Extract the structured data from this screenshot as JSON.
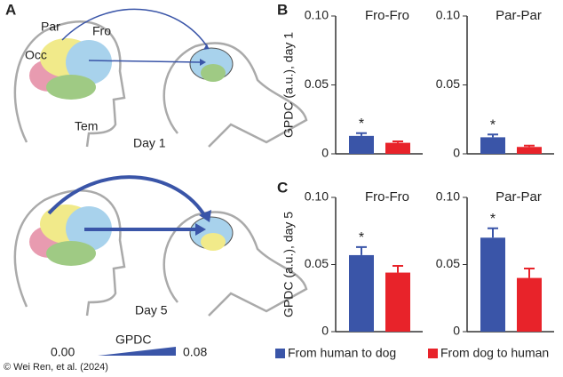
{
  "panels": {
    "a": "A",
    "b": "B",
    "c": "C"
  },
  "diagram": {
    "regions": {
      "occ": "Occ",
      "par": "Par",
      "fro": "Fro",
      "tem": "Tem"
    },
    "day1": "Day 1",
    "day5": "Day 5",
    "scale_label": "GPDC",
    "scale_min": "0.00",
    "scale_max": "0.08"
  },
  "legend": [
    {
      "name": "From human to dog",
      "color": "#3a55a8"
    },
    {
      "name": "From dog to human",
      "color": "#e8232a"
    }
  ],
  "credit": "© Wei Ren, et al. (2024)",
  "chart_data": [
    {
      "type": "bar",
      "title": "Fro-Fro",
      "y_label": "GPDC (a.u.), day 1",
      "categories": [
        null
      ],
      "annotation": "*",
      "ylim": [
        0,
        0.1
      ],
      "yticks": [
        0,
        0.05,
        {
          "value": 0.1,
          "label": "0.10"
        }
      ],
      "series": [
        {
          "color": "#3a55a8",
          "values": [
            0.013
          ],
          "errors": [
            0.002
          ]
        },
        {
          "color": "#e8232a",
          "values": [
            0.008
          ],
          "errors": [
            0.001
          ]
        }
      ]
    },
    {
      "type": "bar",
      "title": "Par-Par",
      "categories": [
        null
      ],
      "annotation": "*",
      "ylim": [
        0,
        0.1
      ],
      "yticks": [
        0,
        0.05,
        {
          "value": 0.1,
          "label": "0.10"
        }
      ],
      "series": [
        {
          "color": "#3a55a8",
          "values": [
            0.012
          ],
          "errors": [
            0.002
          ]
        },
        {
          "color": "#e8232a",
          "values": [
            0.005
          ],
          "errors": [
            0.001
          ]
        }
      ]
    },
    {
      "type": "bar",
      "title": "Fro-Fro",
      "y_label": "GPDC (a.u.), day 5",
      "categories": [
        null
      ],
      "annotation": "*",
      "ylim": [
        0,
        0.1
      ],
      "yticks": [
        0,
        0.05,
        {
          "value": 0.1,
          "label": "0.10"
        }
      ],
      "series": [
        {
          "color": "#3a55a8",
          "values": [
            0.057
          ],
          "errors": [
            0.006
          ]
        },
        {
          "color": "#e8232a",
          "values": [
            0.044
          ],
          "errors": [
            0.005
          ]
        }
      ]
    },
    {
      "type": "bar",
      "title": "Par-Par",
      "categories": [
        null
      ],
      "annotation": "*",
      "ylim": [
        0,
        0.1
      ],
      "yticks": [
        0,
        0.05,
        {
          "value": 0.1,
          "label": "0.10"
        }
      ],
      "series": [
        {
          "color": "#3a55a8",
          "values": [
            0.07
          ],
          "errors": [
            0.007
          ]
        },
        {
          "color": "#e8232a",
          "values": [
            0.04
          ],
          "errors": [
            0.007
          ]
        }
      ]
    }
  ]
}
